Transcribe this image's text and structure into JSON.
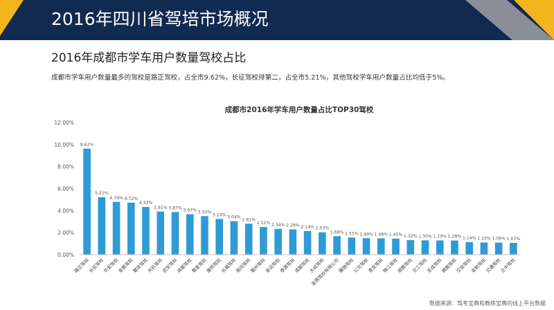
{
  "header": {
    "title": "2016年四川省驾培市场概况"
  },
  "section": {
    "title": "2016年成都市学车用户数量驾校占比",
    "summary": "成都市学车用户数量最多的驾校是路正驾校，占全市9.62%，长征驾校排第二，占全市5.21%，其他驾校学车用户数量占比均低于5%。"
  },
  "footer": {
    "source": "数据来源：驾考宝典和教练宝典的线上平台数据"
  },
  "colors": {
    "bar": "#2e9bd6",
    "header": "#112a4f",
    "accent": "#f2b51c",
    "gray": "#8a8f97"
  },
  "chart_data": {
    "type": "bar",
    "title": "成都市2016年学车用户数量占比TOP30驾校",
    "y_ticks": [
      "0.00%",
      "2.00%",
      "4.00%",
      "6.00%",
      "8.00%",
      "10.00%",
      "12.00%"
    ],
    "ylim": [
      0,
      12
    ],
    "grid": false,
    "categories": [
      "路正驾校",
      "长征驾校",
      "华安驾校",
      "金鹏驾校",
      "蜀安驾校",
      "天玖驾校",
      "武安驾校",
      "成都驾校",
      "蜀星驾校",
      "康桥驾校",
      "长福驾校",
      "南风驾校",
      "蜀州驾校",
      "金运驾校",
      "泰源驾校",
      "成都驾校",
      "大成驾校",
      "金鼎驾校有限公司",
      "翼驰驾校",
      "公交驾校",
      "青安驾校",
      "锦江驾校",
      "顺鹏驾校",
      "交工驾校",
      "亚成驾校",
      "腾鹏驾校",
      "交安驾校",
      "金航驾校",
      "交通驾校",
      "正中驾校"
    ],
    "values": [
      9.62,
      5.21,
      4.79,
      4.72,
      4.33,
      3.91,
      3.87,
      3.67,
      3.5,
      3.24,
      3.04,
      2.81,
      2.51,
      2.34,
      2.29,
      2.14,
      2.03,
      1.68,
      1.55,
      1.49,
      1.48,
      1.45,
      1.32,
      1.3,
      1.29,
      1.28,
      1.14,
      1.1,
      1.09,
      1.07
    ],
    "value_labels": [
      "9.62%",
      "5.21%",
      "4.79%",
      "4.72%",
      "4.33%",
      "3.91%",
      "3.87%",
      "3.67%",
      "3.50%",
      "3.24%",
      "3.04%",
      "2.81%",
      "2.51%",
      "2.34%",
      "2.29%",
      "2.14%",
      "2.03%",
      "1.68%",
      "1.55%",
      "1.49%",
      "1.48%",
      "1.45%",
      "1.32%",
      "1.30%",
      "1.29%",
      "1.28%",
      "1.14%",
      "1.10%",
      "1.09%",
      "1.07%"
    ]
  }
}
